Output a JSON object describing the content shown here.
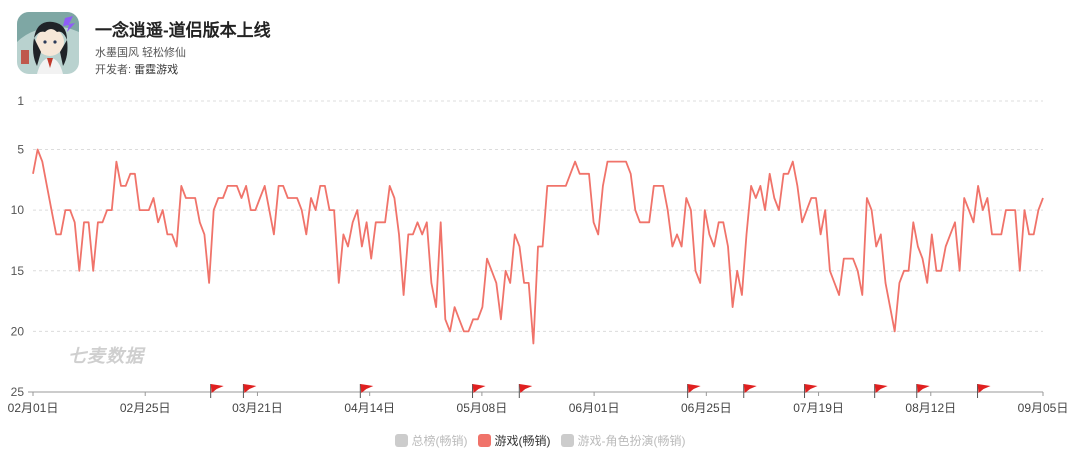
{
  "app": {
    "title": "一念逍遥-道侣版本上线",
    "subtitle": "水墨国风 轻松修仙",
    "developer_label": "开发者: ",
    "developer_name": "雷霆游戏",
    "icon": "app-icon-ink-cultivator"
  },
  "watermark": "七麦数据",
  "legend": [
    {
      "label": "总榜(畅销)",
      "color": "#cccccc",
      "active": false
    },
    {
      "label": "游戏(畅销)",
      "color": "#f0736a",
      "active": true
    },
    {
      "label": "游戏-角色扮演(畅销)",
      "color": "#cccccc",
      "active": false
    }
  ],
  "chart_data": {
    "type": "line",
    "title": "",
    "xlabel": "",
    "ylabel": "",
    "y_inverted": true,
    "ylim": [
      1,
      25
    ],
    "y_ticks": [
      1,
      5,
      10,
      15,
      20,
      25
    ],
    "x_ticks": [
      "02月01日",
      "02月25日",
      "03月21日",
      "04月14日",
      "05月08日",
      "06月01日",
      "06月25日",
      "07月19日",
      "08月12日",
      "09月05日"
    ],
    "x_start": "02月01日",
    "x_end": "09月05日",
    "grid": true,
    "series": [
      {
        "name": "游戏(畅销)",
        "color": "#f0736a",
        "values": [
          7,
          5,
          6,
          8,
          10,
          12,
          12,
          10,
          10,
          11,
          15,
          11,
          11,
          15,
          11,
          11,
          10,
          10,
          6,
          8,
          8,
          7,
          7,
          10,
          10,
          10,
          9,
          11,
          10,
          12,
          12,
          13,
          8,
          9,
          9,
          9,
          11,
          12,
          16,
          10,
          9,
          9,
          8,
          8,
          8,
          9,
          8,
          10,
          10,
          9,
          8,
          10,
          12,
          8,
          8,
          9,
          9,
          9,
          10,
          12,
          9,
          10,
          8,
          8,
          10,
          10,
          16,
          12,
          13,
          11,
          10,
          13,
          11,
          14,
          11,
          11,
          11,
          8,
          9,
          12,
          17,
          12,
          12,
          11,
          12,
          11,
          16,
          18,
          11,
          19,
          20,
          18,
          19,
          20,
          20,
          19,
          19,
          18,
          14,
          15,
          16,
          19,
          15,
          16,
          12,
          13,
          16,
          16,
          21,
          13,
          13,
          8,
          8,
          8,
          8,
          8,
          7,
          6,
          7,
          7,
          7,
          11,
          12,
          8,
          6,
          6,
          6,
          6,
          6,
          7,
          10,
          11,
          11,
          11,
          8,
          8,
          8,
          10,
          13,
          12,
          13,
          9,
          10,
          15,
          16,
          10,
          12,
          13,
          11,
          11,
          13,
          18,
          15,
          17,
          12,
          8,
          9,
          8,
          10,
          7,
          9,
          10,
          7,
          7,
          6,
          8,
          11,
          10,
          9,
          9,
          12,
          10,
          15,
          16,
          17,
          14,
          14,
          14,
          15,
          17,
          9,
          10,
          13,
          12,
          16,
          18,
          20,
          16,
          15,
          15,
          11,
          13,
          14,
          16,
          12,
          15,
          15,
          13,
          12,
          11,
          15,
          9,
          10,
          11,
          8,
          10,
          9,
          12,
          12,
          12,
          10,
          10,
          10,
          15,
          10,
          12,
          12,
          10,
          9
        ]
      }
    ],
    "flag_markers": [
      {
        "date": "03月11日",
        "color": "#e02020"
      },
      {
        "date": "03月18日",
        "color": "#e02020"
      },
      {
        "date": "04月12日",
        "color": "#e02020"
      },
      {
        "date": "05月06日",
        "color": "#e02020"
      },
      {
        "date": "05月16日",
        "color": "#e02020"
      },
      {
        "date": "06月21日",
        "color": "#e02020"
      },
      {
        "date": "07月03日",
        "color": "#e02020"
      },
      {
        "date": "07月16日",
        "color": "#e02020"
      },
      {
        "date": "07月31日",
        "color": "#e02020"
      },
      {
        "date": "08月09日",
        "color": "#e02020"
      },
      {
        "date": "08月22日",
        "color": "#e02020"
      }
    ]
  }
}
